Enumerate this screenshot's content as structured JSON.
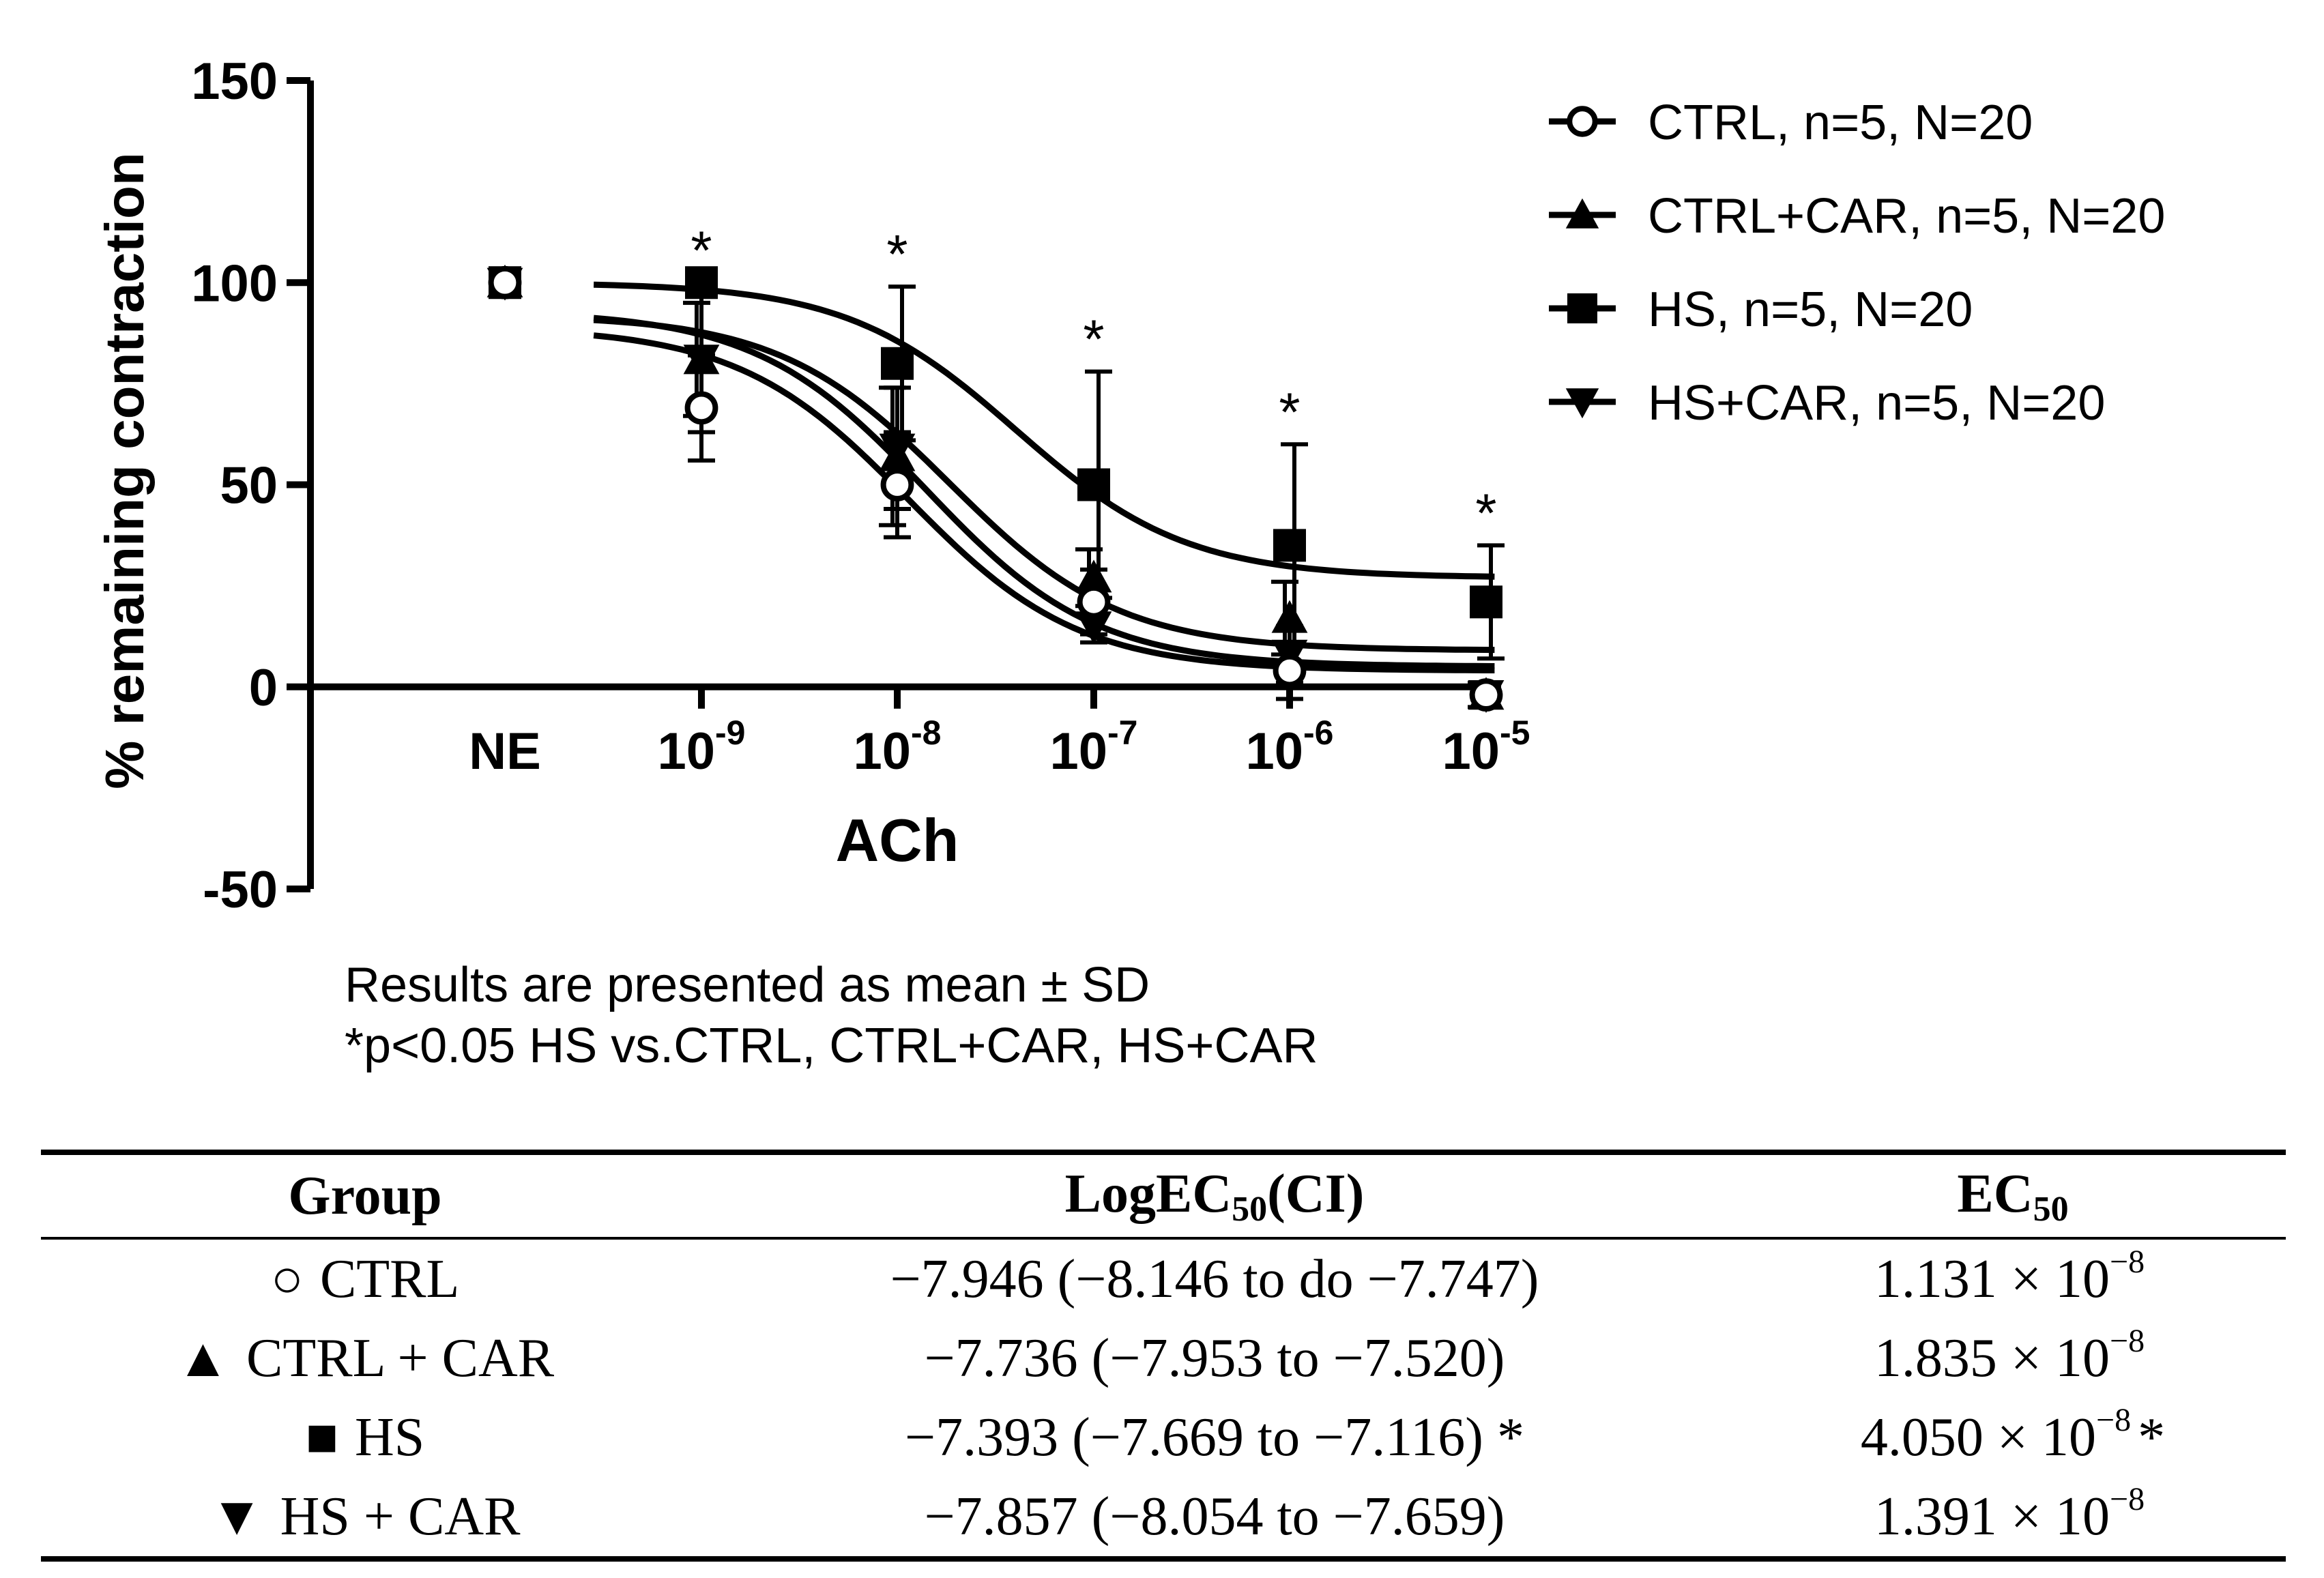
{
  "chart_data": {
    "type": "line",
    "title": "",
    "xlabel": "ACh",
    "ylabel": "% remaining contraction",
    "ylim": [
      -50,
      150
    ],
    "yticks": [
      -50,
      0,
      50,
      100,
      150
    ],
    "ytick_labels": [
      "-50",
      "0",
      "50",
      "100",
      "150"
    ],
    "categories": [
      "NE",
      "10-9",
      "10-8",
      "10-7",
      "10-6",
      "10-5"
    ],
    "xtick_labels": [
      {
        "base": "NE",
        "exp": ""
      },
      {
        "base": "10",
        "exp": "-9"
      },
      {
        "base": "10",
        "exp": "-8"
      },
      {
        "base": "10",
        "exp": "-7"
      },
      {
        "base": "10",
        "exp": "-6"
      },
      {
        "base": "10",
        "exp": "-5"
      }
    ],
    "grid": false,
    "legend_position": "top-right",
    "series": [
      {
        "name": "CTRL, n=5, N=20",
        "marker": "circle-open",
        "values": [
          100,
          69,
          50,
          21,
          4,
          -2
        ],
        "errors": [
          0,
          13,
          13,
          8,
          7,
          3
        ],
        "fit": {
          "top": 89,
          "bottom": 4,
          "logEC50": -7.946
        }
      },
      {
        "name": "CTRL+CAR, n=5, N=20",
        "marker": "triangle-up",
        "values": [
          100,
          81,
          57,
          27,
          17,
          -2
        ],
        "errors": [
          0,
          14,
          17,
          7,
          9,
          3
        ],
        "fit": {
          "top": 92,
          "bottom": 9,
          "logEC50": -7.736
        }
      },
      {
        "name": "HS, n=5, N=20",
        "marker": "square",
        "values": [
          100,
          100,
          80,
          50,
          35,
          21
        ],
        "errors": [
          0,
          0,
          19,
          28,
          25,
          14
        ],
        "fit": {
          "top": 100,
          "bottom": 27,
          "logEC50": -7.393
        }
      },
      {
        "name": "HS+CAR, n=5, N=20",
        "marker": "triangle-down",
        "values": [
          100,
          81,
          59,
          15,
          8,
          -2
        ],
        "errors": [
          0,
          18,
          15,
          4,
          7,
          3
        ],
        "fit": {
          "top": 93,
          "bottom": 5,
          "logEC50": -7.857
        }
      }
    ],
    "significance_markers": [
      {
        "category": "10-9",
        "label": "*"
      },
      {
        "category": "10-8",
        "label": "*"
      },
      {
        "category": "10-7",
        "label": "*"
      },
      {
        "category": "10-6",
        "label": "*"
      },
      {
        "category": "10-5",
        "label": "*"
      }
    ]
  },
  "notes": {
    "line1": "Results are presented as mean ± SD",
    "line2": "*p<0.05 HS vs.CTRL, CTRL+CAR, HS+CAR"
  },
  "table": {
    "headers": {
      "group": "Group",
      "log_prefix": "LogEC",
      "log_sub": "50",
      "log_suffix": "(CI)",
      "ec_prefix": "EC",
      "ec_sub": "50"
    },
    "rows": [
      {
        "symbol": "○",
        "group": "CTRL",
        "log": "−7.946 (−8.146 to do −7.747)",
        "ec_base": "1.131 × 10",
        "ec_exp": "−8",
        "ec_suffix": ""
      },
      {
        "symbol": "▲",
        "group": "CTRL + CAR",
        "log": "−7.736 (−7.953 to −7.520)",
        "ec_base": "1.835 × 10",
        "ec_exp": "−8",
        "ec_suffix": ""
      },
      {
        "symbol": "■",
        "group": "HS",
        "log": "−7.393 (−7.669 to −7.116) *",
        "ec_base": "4.050 × 10",
        "ec_exp": "−8",
        "ec_suffix": "*"
      },
      {
        "symbol": "▼",
        "group": "HS + CAR",
        "log": "−7.857 (−8.054 to −7.659)",
        "ec_base": "1.391 × 10",
        "ec_exp": "−8",
        "ec_suffix": ""
      }
    ]
  }
}
